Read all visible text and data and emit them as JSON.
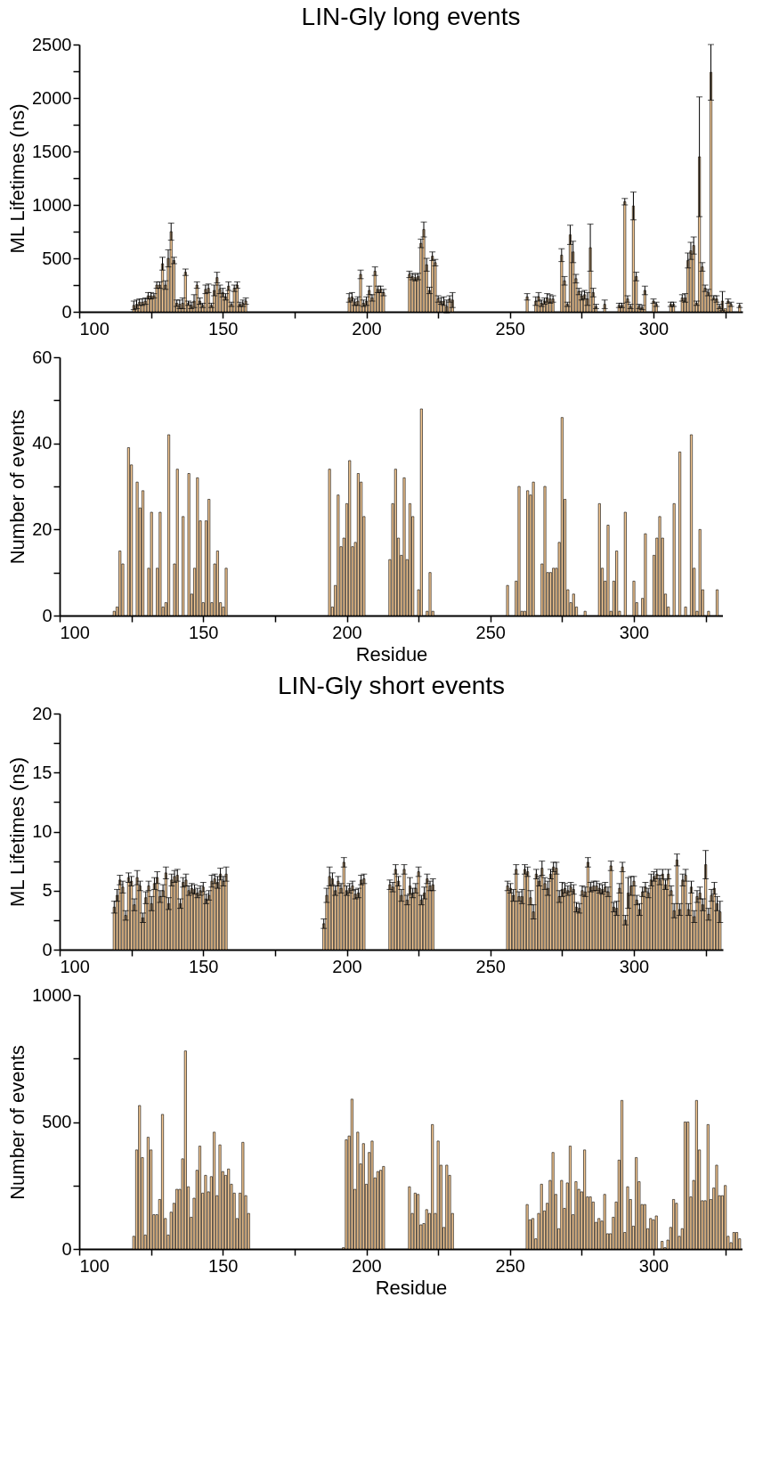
{
  "chart_data": [
    {
      "type": "bar",
      "title": "LIN-Gly long events",
      "ylabel": "ML Lifetimes (ns)",
      "color": "#f5c892",
      "x": [
        119,
        120,
        121,
        122,
        123,
        124,
        125,
        126,
        127,
        128,
        129,
        130,
        131,
        132,
        133,
        134,
        135,
        136,
        137,
        138,
        139,
        140,
        141,
        142,
        143,
        144,
        145,
        146,
        147,
        148,
        149,
        150,
        151,
        152,
        153,
        154,
        155,
        156,
        157,
        158,
        194,
        195,
        196,
        197,
        198,
        199,
        200,
        201,
        202,
        203,
        204,
        205,
        206,
        215,
        216,
        217,
        218,
        219,
        220,
        221,
        222,
        223,
        224,
        225,
        226,
        227,
        228,
        229,
        230,
        256,
        259,
        260,
        261,
        262,
        263,
        264,
        265,
        268,
        269,
        270,
        271,
        272,
        273,
        274,
        275,
        276,
        277,
        278,
        279,
        280,
        283,
        288,
        289,
        290,
        291,
        292,
        293,
        294,
        295,
        296,
        297,
        300,
        301,
        306,
        307,
        310,
        311,
        312,
        313,
        314,
        315,
        316,
        317,
        318,
        319,
        320,
        321,
        322,
        323,
        324,
        325,
        326,
        327,
        330
      ],
      "values": [
        60,
        70,
        90,
        90,
        100,
        150,
        150,
        150,
        250,
        250,
        450,
        250,
        500,
        750,
        480,
        80,
        70,
        80,
        370,
        80,
        60,
        100,
        250,
        100,
        60,
        210,
        220,
        60,
        200,
        320,
        210,
        180,
        140,
        240,
        70,
        220,
        250,
        70,
        80,
        100,
        130,
        140,
        90,
        100,
        350,
        80,
        100,
        200,
        130,
        380,
        210,
        210,
        180,
        350,
        330,
        320,
        330,
        640,
        770,
        440,
        200,
        520,
        460,
        120,
        100,
        100,
        50,
        120,
        110,
        140,
        100,
        140,
        80,
        100,
        130,
        120,
        120,
        530,
        290,
        70,
        720,
        560,
        310,
        190,
        150,
        160,
        120,
        600,
        180,
        50,
        70,
        60,
        60,
        1030,
        120,
        50,
        990,
        330,
        50,
        40,
        200,
        100,
        70,
        70,
        70,
        130,
        130,
        480,
        570,
        620,
        80,
        1450,
        420,
        220,
        180,
        2240,
        130,
        120,
        50,
        100,
        30,
        100,
        70,
        60
      ],
      "errors": [
        40,
        40,
        30,
        30,
        30,
        30,
        30,
        20,
        30,
        30,
        60,
        40,
        80,
        80,
        30,
        30,
        40,
        50,
        30,
        20,
        30,
        60,
        30,
        30,
        20,
        40,
        40,
        20,
        50,
        50,
        40,
        40,
        30,
        40,
        20,
        30,
        30,
        20,
        30,
        30,
        40,
        40,
        30,
        40,
        40,
        30,
        40,
        40,
        30,
        40,
        30,
        30,
        30,
        30,
        30,
        30,
        30,
        40,
        70,
        60,
        30,
        40,
        30,
        30,
        30,
        40,
        60,
        30,
        70,
        30,
        40,
        40,
        30,
        30,
        40,
        40,
        30,
        60,
        40,
        20,
        90,
        100,
        40,
        30,
        40,
        40,
        60,
        220,
        40,
        20,
        40,
        20,
        20,
        30,
        30,
        20,
        130,
        40,
        20,
        20,
        40,
        20,
        20,
        20,
        20,
        30,
        40,
        70,
        80,
        80,
        20,
        560,
        40,
        30,
        30,
        260,
        20,
        30,
        20,
        90,
        null,
        20,
        20,
        20
      ],
      "xlim": [
        100,
        331
      ],
      "xticks": [
        100,
        {
          "value": 125,
          "label": null
        },
        150,
        {
          "value": 175,
          "label": null
        },
        200,
        {
          "value": 225,
          "label": null
        },
        250,
        {
          "value": 275,
          "label": null
        },
        300,
        {
          "value": 325,
          "label": null
        }
      ],
      "ylim": [
        0,
        2500
      ],
      "yticks": [
        0,
        {
          "value": 250,
          "label": null
        },
        500,
        {
          "value": 750,
          "label": null
        },
        1000,
        {
          "value": 1250,
          "label": null
        },
        1500,
        {
          "value": 1750,
          "label": null
        },
        2000,
        {
          "value": 2250,
          "label": null
        },
        2500
      ]
    },
    {
      "type": "bar",
      "ylabel": "Number of events",
      "xlabel": "Residue",
      "color": "#f5c892",
      "x": [
        119,
        120,
        121,
        122,
        124,
        125,
        127,
        128,
        129,
        131,
        132,
        134,
        135,
        136,
        137,
        138,
        140,
        141,
        143,
        145,
        146,
        147,
        148,
        149,
        150,
        151,
        152,
        153,
        154,
        155,
        156,
        157,
        158,
        194,
        195,
        196,
        197,
        198,
        199,
        200,
        201,
        202,
        203,
        204,
        205,
        206,
        215,
        216,
        217,
        218,
        219,
        220,
        221,
        222,
        223,
        225,
        226,
        228,
        229,
        230,
        256,
        259,
        260,
        261,
        262,
        263,
        264,
        265,
        268,
        269,
        270,
        271,
        272,
        273,
        274,
        275,
        276,
        277,
        278,
        279,
        280,
        283,
        288,
        289,
        290,
        291,
        292,
        293,
        294,
        295,
        297,
        300,
        301,
        303,
        304,
        307,
        308,
        309,
        310,
        311,
        312,
        314,
        316,
        318,
        320,
        321,
        322,
        323,
        324,
        326,
        329
      ],
      "values": [
        1,
        2,
        15,
        12,
        39,
        35,
        31,
        25,
        29,
        11,
        24,
        11,
        24,
        2,
        3,
        42,
        12,
        34,
        23,
        33,
        5,
        11,
        32,
        22,
        3,
        22,
        27,
        3,
        12,
        15,
        3,
        2,
        11,
        34,
        2,
        7,
        28,
        16,
        18,
        26,
        36,
        16,
        17,
        33,
        31,
        23,
        13,
        26,
        34,
        18,
        14,
        32,
        13,
        26,
        23,
        6,
        48,
        1,
        10,
        1,
        7,
        8,
        30,
        1,
        1,
        29,
        28,
        31,
        12,
        30,
        10,
        10,
        11,
        11,
        17,
        46,
        27,
        6,
        3,
        5,
        2,
        1,
        26,
        11,
        8,
        21,
        1,
        8,
        15,
        1,
        24,
        8,
        3,
        4,
        19,
        14,
        18,
        23,
        18,
        5,
        2,
        26,
        38,
        2,
        42,
        11,
        1,
        20,
        6,
        1,
        6
      ],
      "xlim": [
        100,
        331
      ],
      "xticks": [
        100,
        {
          "value": 125,
          "label": null
        },
        150,
        {
          "value": 175,
          "label": null
        },
        200,
        {
          "value": 225,
          "label": null
        },
        250,
        {
          "value": 275,
          "label": null
        },
        300,
        {
          "value": 325,
          "label": null
        }
      ],
      "ylim": [
        0,
        60
      ],
      "yticks": [
        0,
        {
          "value": 10,
          "label": null
        },
        20,
        {
          "value": 30,
          "label": null
        },
        40,
        {
          "value": 50,
          "label": null
        },
        60
      ]
    },
    {
      "type": "bar",
      "title": "LIN-Gly short events",
      "ylabel": "ML Lifetimes (ns)",
      "color": "#f5c892",
      "x": [
        119,
        120,
        121,
        122,
        123,
        124,
        125,
        126,
        127,
        128,
        129,
        130,
        131,
        132,
        133,
        134,
        135,
        136,
        137,
        138,
        139,
        140,
        141,
        142,
        143,
        144,
        145,
        146,
        147,
        148,
        149,
        150,
        151,
        152,
        153,
        154,
        155,
        156,
        157,
        158,
        192,
        193,
        194,
        195,
        196,
        197,
        198,
        199,
        200,
        201,
        202,
        203,
        204,
        205,
        206,
        215,
        216,
        217,
        218,
        219,
        220,
        221,
        222,
        223,
        224,
        225,
        226,
        227,
        228,
        229,
        230,
        256,
        257,
        258,
        259,
        260,
        261,
        262,
        263,
        264,
        265,
        266,
        267,
        268,
        269,
        270,
        271,
        272,
        273,
        274,
        275,
        276,
        277,
        278,
        279,
        280,
        281,
        282,
        283,
        284,
        285,
        286,
        287,
        288,
        289,
        290,
        291,
        292,
        293,
        294,
        295,
        296,
        297,
        298,
        299,
        300,
        301,
        302,
        303,
        304,
        305,
        306,
        307,
        308,
        309,
        310,
        311,
        312,
        313,
        314,
        315,
        316,
        317,
        318,
        319,
        320,
        321,
        322,
        323,
        324,
        325,
        326,
        327,
        328,
        329,
        330
      ],
      "values": [
        3.6,
        4.6,
        5.9,
        5.3,
        2.9,
        6.1,
        5.8,
        3.8,
        6.1,
        5.4,
        2.7,
        4.4,
        5.4,
        3.9,
        5.6,
        6.1,
        4.5,
        5.0,
        6.5,
        3.9,
        5.9,
        6.2,
        6.3,
        3.9,
        5.7,
        5.9,
        5.0,
        5.2,
        5.1,
        4.8,
        5.0,
        5.3,
        4.3,
        4.6,
        5.8,
        6.0,
        5.7,
        6.4,
        5.8,
        6.4,
        2.2,
        4.6,
        6.2,
        6.0,
        5.0,
        5.8,
        5.2,
        7.4,
        5.0,
        5.2,
        5.4,
        4.7,
        4.8,
        5.9,
        6.0,
        5.5,
        5.3,
        6.8,
        5.8,
        4.6,
        6.8,
        4.2,
        5.4,
        4.8,
        5.2,
        6.6,
        4.2,
        4.8,
        6.0,
        5.4,
        5.5,
        5.4,
        5.2,
        4.6,
        6.8,
        4.5,
        4.5,
        6.8,
        6.6,
        4.4,
        3.2,
        6.4,
        5.8,
        6.9,
        5.6,
        5.2,
        6.4,
        7.0,
        6.9,
        4.5,
        5.1,
        5.2,
        5.0,
        5.3,
        5.1,
        3.6,
        3.5,
        5.0,
        4.9,
        7.4,
        5.3,
        5.4,
        5.4,
        5.2,
        5.1,
        5.3,
        4.9,
        7.1,
        3.6,
        3.5,
        5.2,
        7.0,
        2.5,
        4.8,
        5.4,
        5.8,
        4.2,
        3.4,
        4.9,
        5.3,
        4.8,
        5.9,
        6.2,
        6.4,
        5.9,
        6.4,
        5.5,
        6.4,
        5.0,
        3.3,
        7.6,
        3.4,
        5.9,
        6.3,
        3.4,
        5.3,
        2.8,
        4.5,
        4.8,
        3.8,
        7.2,
        3.0,
        4.6,
        5.2,
        3.9,
        3.2
      ],
      "errors": [
        0.5,
        0.5,
        0.4,
        0.5,
        0.4,
        0.4,
        0.4,
        0.5,
        0.6,
        0.4,
        0.4,
        0.5,
        0.4,
        0.6,
        0.5,
        0.5,
        0.5,
        0.5,
        0.5,
        0.5,
        0.5,
        0.5,
        0.5,
        0.4,
        0.4,
        0.5,
        0.4,
        0.4,
        0.4,
        0.4,
        0.4,
        0.4,
        0.4,
        0.4,
        0.5,
        0.4,
        0.5,
        0.5,
        0.4,
        0.6,
        0.4,
        0.6,
        0.8,
        0.5,
        0.4,
        0.4,
        0.4,
        0.4,
        0.4,
        0.4,
        0.4,
        0.4,
        0.4,
        0.4,
        0.4,
        0.4,
        0.4,
        0.4,
        0.4,
        0.5,
        0.4,
        0.4,
        0.7,
        0.4,
        0.4,
        0.4,
        0.4,
        0.5,
        0.4,
        0.4,
        0.5,
        0.4,
        0.4,
        0.5,
        0.4,
        0.4,
        0.6,
        0.4,
        0.4,
        0.6,
        0.6,
        0.4,
        0.4,
        0.6,
        0.5,
        0.6,
        0.4,
        0.4,
        0.5,
        0.5,
        0.6,
        0.4,
        0.4,
        0.4,
        0.4,
        0.4,
        0.4,
        0.4,
        0.4,
        0.4,
        0.4,
        0.4,
        0.4,
        0.4,
        0.4,
        0.4,
        0.4,
        0.4,
        0.4,
        0.6,
        0.4,
        0.4,
        0.4,
        1.3,
        0.8,
        0.4,
        0.4,
        0.5,
        0.4,
        0.4,
        0.4,
        0.5,
        0.4,
        0.4,
        0.4,
        0.4,
        0.4,
        0.4,
        0.4,
        0.6,
        0.5,
        0.5,
        0.5,
        0.5,
        0.5,
        0.5,
        0.5,
        0.5,
        0.5,
        0.5,
        1.2,
        0.5,
        0.5,
        0.5,
        0.6,
        0.9
      ],
      "xlim": [
        100,
        331
      ],
      "xticks": [
        100,
        {
          "value": 125,
          "label": null
        },
        150,
        {
          "value": 175,
          "label": null
        },
        200,
        {
          "value": 225,
          "label": null
        },
        250,
        {
          "value": 275,
          "label": null
        },
        300,
        {
          "value": 325,
          "label": null
        }
      ],
      "ylim": [
        0,
        20
      ],
      "yticks": [
        0,
        {
          "value": 2.5,
          "label": null
        },
        5,
        {
          "value": 7.5,
          "label": null
        },
        10,
        {
          "value": 12.5,
          "label": null
        },
        15,
        {
          "value": 17.5,
          "label": null
        },
        20
      ]
    },
    {
      "type": "bar",
      "ylabel": "Number of events",
      "xlabel": "Residue",
      "color": "#f5c892",
      "x": [
        119,
        120,
        121,
        122,
        123,
        124,
        125,
        126,
        127,
        128,
        129,
        130,
        131,
        132,
        133,
        134,
        135,
        136,
        137,
        138,
        139,
        140,
        141,
        142,
        143,
        144,
        145,
        146,
        147,
        148,
        149,
        150,
        151,
        152,
        153,
        154,
        155,
        156,
        157,
        158,
        159,
        192,
        193,
        194,
        195,
        196,
        197,
        198,
        199,
        200,
        201,
        202,
        203,
        204,
        205,
        206,
        215,
        216,
        217,
        218,
        219,
        220,
        221,
        222,
        223,
        224,
        225,
        226,
        227,
        228,
        229,
        230,
        256,
        257,
        258,
        259,
        260,
        261,
        262,
        263,
        264,
        265,
        266,
        267,
        268,
        269,
        270,
        271,
        272,
        273,
        274,
        275,
        276,
        277,
        278,
        279,
        280,
        281,
        282,
        283,
        284,
        285,
        286,
        287,
        288,
        289,
        290,
        291,
        292,
        293,
        294,
        295,
        296,
        297,
        298,
        299,
        300,
        301,
        303,
        304,
        305,
        306,
        307,
        308,
        309,
        310,
        311,
        312,
        313,
        314,
        315,
        316,
        317,
        318,
        319,
        320,
        321,
        322,
        323,
        324,
        325,
        326,
        327,
        328,
        329,
        330
      ],
      "values": [
        50,
        390,
        565,
        360,
        55,
        440,
        390,
        135,
        135,
        195,
        530,
        120,
        55,
        145,
        180,
        235,
        235,
        355,
        780,
        245,
        125,
        200,
        310,
        405,
        220,
        290,
        225,
        285,
        460,
        210,
        410,
        305,
        290,
        315,
        255,
        220,
        120,
        220,
        420,
        210,
        140,
        5,
        430,
        445,
        590,
        235,
        460,
        335,
        415,
        255,
        380,
        425,
        280,
        305,
        310,
        325,
        245,
        140,
        220,
        215,
        95,
        100,
        155,
        140,
        490,
        140,
        425,
        330,
        85,
        330,
        290,
        140,
        175,
        115,
        120,
        40,
        140,
        255,
        150,
        180,
        270,
        380,
        215,
        80,
        270,
        160,
        260,
        405,
        135,
        265,
        235,
        225,
        390,
        205,
        205,
        185,
        105,
        120,
        110,
        215,
        60,
        60,
        125,
        185,
        350,
        585,
        65,
        245,
        195,
        90,
        360,
        265,
        175,
        175,
        80,
        120,
        115,
        130,
        30,
        5,
        35,
        85,
        195,
        180,
        50,
        80,
        500,
        500,
        205,
        270,
        585,
        390,
        190,
        190,
        490,
        195,
        240,
        330,
        210,
        210,
        250,
        50,
        25,
        65,
        65,
        40
      ],
      "xlim": [
        100,
        331
      ],
      "xticks": [
        100,
        {
          "value": 125,
          "label": null
        },
        150,
        {
          "value": 175,
          "label": null
        },
        200,
        {
          "value": 225,
          "label": null
        },
        250,
        {
          "value": 275,
          "label": null
        },
        300,
        {
          "value": 325,
          "label": null
        }
      ],
      "ylim": [
        0,
        1000
      ],
      "yticks": [
        0,
        {
          "value": 250,
          "label": null
        },
        500,
        {
          "value": 750,
          "label": null
        },
        1000
      ]
    }
  ]
}
